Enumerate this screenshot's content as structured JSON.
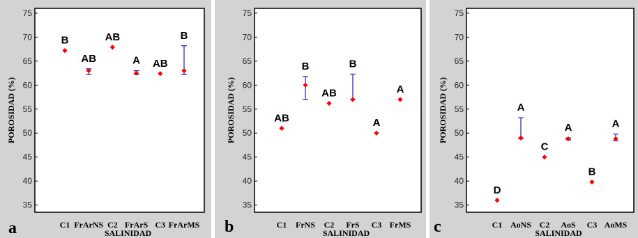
{
  "colors": {
    "panel_background": "#d3d3d3",
    "plot_background": "#ffffff",
    "marker": "#ff0000",
    "error_bar": "#1f1fb8",
    "text": "#000000"
  },
  "chart_data": [
    {
      "type": "scatter",
      "panel_label": "a",
      "xlabel": "SALINIDAD",
      "ylabel": "POROSIDAD (%)",
      "ylim": [
        33.5,
        76
      ],
      "yticks": [
        35,
        40,
        45,
        50,
        55,
        60,
        65,
        70,
        75
      ],
      "grid": false,
      "categories": [
        "C1",
        "FrArNS",
        "C2",
        "FrArS",
        "C3",
        "FrArMS"
      ],
      "values": [
        67.2,
        63.0,
        67.9,
        62.5,
        62.4,
        63.0
      ],
      "error_low": [
        null,
        62.2,
        null,
        62.2,
        null,
        62.2
      ],
      "error_high": [
        null,
        63.4,
        null,
        63.0,
        null,
        68.2
      ],
      "group_labels": [
        "B",
        "AB",
        "AB",
        "A",
        "AB",
        "B"
      ]
    },
    {
      "type": "scatter",
      "panel_label": "b",
      "xlabel": "SALINIDAD",
      "ylabel": "POROSIDAD (%)",
      "ylim": [
        33.5,
        76
      ],
      "yticks": [
        35,
        40,
        45,
        50,
        55,
        60,
        65,
        70,
        75
      ],
      "grid": false,
      "categories": [
        "C1",
        "FrNS",
        "C2",
        "FrS",
        "C3",
        "FrMS"
      ],
      "values": [
        51.0,
        60.0,
        56.2,
        57.0,
        50.0,
        57.0
      ],
      "error_low": [
        null,
        57.0,
        null,
        57.0,
        null,
        null
      ],
      "error_high": [
        null,
        61.8,
        null,
        62.3,
        null,
        null
      ],
      "group_labels": [
        "AB",
        "B",
        "AB",
        "B",
        "A",
        "A"
      ]
    },
    {
      "type": "scatter",
      "panel_label": "c",
      "xlabel": "SALINIDAD",
      "ylabel": "POROSIDAD (%)",
      "ylim": [
        33.5,
        76
      ],
      "yticks": [
        35,
        40,
        45,
        50,
        55,
        60,
        65,
        70,
        75
      ],
      "grid": false,
      "categories": [
        "C1",
        "AoNS",
        "C2",
        "AoS",
        "C3",
        "AoMS"
      ],
      "values": [
        36.0,
        49.0,
        45.0,
        48.8,
        39.8,
        48.8
      ],
      "error_low": [
        null,
        48.8,
        null,
        48.6,
        null,
        48.4
      ],
      "error_high": [
        null,
        53.2,
        null,
        49.0,
        null,
        49.8
      ],
      "group_labels": [
        "D",
        "A",
        "C",
        "A",
        "B",
        "A"
      ]
    }
  ]
}
